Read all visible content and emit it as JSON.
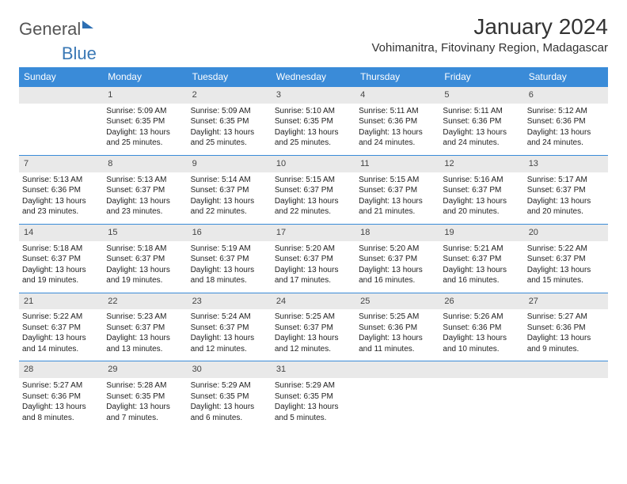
{
  "logo": {
    "part1": "General",
    "part2": "Blue"
  },
  "title": "January 2024",
  "location": "Vohimanitra, Fitovinany Region, Madagascar",
  "colors": {
    "header_bg": "#3a8bd8",
    "header_text": "#ffffff",
    "daynum_bg": "#e9e9e9",
    "border": "#3a8bd8"
  },
  "weekdays": [
    "Sunday",
    "Monday",
    "Tuesday",
    "Wednesday",
    "Thursday",
    "Friday",
    "Saturday"
  ],
  "weeks": [
    [
      null,
      {
        "n": "1",
        "sr": "Sunrise: 5:09 AM",
        "ss": "Sunset: 6:35 PM",
        "dl": "Daylight: 13 hours and 25 minutes."
      },
      {
        "n": "2",
        "sr": "Sunrise: 5:09 AM",
        "ss": "Sunset: 6:35 PM",
        "dl": "Daylight: 13 hours and 25 minutes."
      },
      {
        "n": "3",
        "sr": "Sunrise: 5:10 AM",
        "ss": "Sunset: 6:35 PM",
        "dl": "Daylight: 13 hours and 25 minutes."
      },
      {
        "n": "4",
        "sr": "Sunrise: 5:11 AM",
        "ss": "Sunset: 6:36 PM",
        "dl": "Daylight: 13 hours and 24 minutes."
      },
      {
        "n": "5",
        "sr": "Sunrise: 5:11 AM",
        "ss": "Sunset: 6:36 PM",
        "dl": "Daylight: 13 hours and 24 minutes."
      },
      {
        "n": "6",
        "sr": "Sunrise: 5:12 AM",
        "ss": "Sunset: 6:36 PM",
        "dl": "Daylight: 13 hours and 24 minutes."
      }
    ],
    [
      {
        "n": "7",
        "sr": "Sunrise: 5:13 AM",
        "ss": "Sunset: 6:36 PM",
        "dl": "Daylight: 13 hours and 23 minutes."
      },
      {
        "n": "8",
        "sr": "Sunrise: 5:13 AM",
        "ss": "Sunset: 6:37 PM",
        "dl": "Daylight: 13 hours and 23 minutes."
      },
      {
        "n": "9",
        "sr": "Sunrise: 5:14 AM",
        "ss": "Sunset: 6:37 PM",
        "dl": "Daylight: 13 hours and 22 minutes."
      },
      {
        "n": "10",
        "sr": "Sunrise: 5:15 AM",
        "ss": "Sunset: 6:37 PM",
        "dl": "Daylight: 13 hours and 22 minutes."
      },
      {
        "n": "11",
        "sr": "Sunrise: 5:15 AM",
        "ss": "Sunset: 6:37 PM",
        "dl": "Daylight: 13 hours and 21 minutes."
      },
      {
        "n": "12",
        "sr": "Sunrise: 5:16 AM",
        "ss": "Sunset: 6:37 PM",
        "dl": "Daylight: 13 hours and 20 minutes."
      },
      {
        "n": "13",
        "sr": "Sunrise: 5:17 AM",
        "ss": "Sunset: 6:37 PM",
        "dl": "Daylight: 13 hours and 20 minutes."
      }
    ],
    [
      {
        "n": "14",
        "sr": "Sunrise: 5:18 AM",
        "ss": "Sunset: 6:37 PM",
        "dl": "Daylight: 13 hours and 19 minutes."
      },
      {
        "n": "15",
        "sr": "Sunrise: 5:18 AM",
        "ss": "Sunset: 6:37 PM",
        "dl": "Daylight: 13 hours and 19 minutes."
      },
      {
        "n": "16",
        "sr": "Sunrise: 5:19 AM",
        "ss": "Sunset: 6:37 PM",
        "dl": "Daylight: 13 hours and 18 minutes."
      },
      {
        "n": "17",
        "sr": "Sunrise: 5:20 AM",
        "ss": "Sunset: 6:37 PM",
        "dl": "Daylight: 13 hours and 17 minutes."
      },
      {
        "n": "18",
        "sr": "Sunrise: 5:20 AM",
        "ss": "Sunset: 6:37 PM",
        "dl": "Daylight: 13 hours and 16 minutes."
      },
      {
        "n": "19",
        "sr": "Sunrise: 5:21 AM",
        "ss": "Sunset: 6:37 PM",
        "dl": "Daylight: 13 hours and 16 minutes."
      },
      {
        "n": "20",
        "sr": "Sunrise: 5:22 AM",
        "ss": "Sunset: 6:37 PM",
        "dl": "Daylight: 13 hours and 15 minutes."
      }
    ],
    [
      {
        "n": "21",
        "sr": "Sunrise: 5:22 AM",
        "ss": "Sunset: 6:37 PM",
        "dl": "Daylight: 13 hours and 14 minutes."
      },
      {
        "n": "22",
        "sr": "Sunrise: 5:23 AM",
        "ss": "Sunset: 6:37 PM",
        "dl": "Daylight: 13 hours and 13 minutes."
      },
      {
        "n": "23",
        "sr": "Sunrise: 5:24 AM",
        "ss": "Sunset: 6:37 PM",
        "dl": "Daylight: 13 hours and 12 minutes."
      },
      {
        "n": "24",
        "sr": "Sunrise: 5:25 AM",
        "ss": "Sunset: 6:37 PM",
        "dl": "Daylight: 13 hours and 12 minutes."
      },
      {
        "n": "25",
        "sr": "Sunrise: 5:25 AM",
        "ss": "Sunset: 6:36 PM",
        "dl": "Daylight: 13 hours and 11 minutes."
      },
      {
        "n": "26",
        "sr": "Sunrise: 5:26 AM",
        "ss": "Sunset: 6:36 PM",
        "dl": "Daylight: 13 hours and 10 minutes."
      },
      {
        "n": "27",
        "sr": "Sunrise: 5:27 AM",
        "ss": "Sunset: 6:36 PM",
        "dl": "Daylight: 13 hours and 9 minutes."
      }
    ],
    [
      {
        "n": "28",
        "sr": "Sunrise: 5:27 AM",
        "ss": "Sunset: 6:36 PM",
        "dl": "Daylight: 13 hours and 8 minutes."
      },
      {
        "n": "29",
        "sr": "Sunrise: 5:28 AM",
        "ss": "Sunset: 6:35 PM",
        "dl": "Daylight: 13 hours and 7 minutes."
      },
      {
        "n": "30",
        "sr": "Sunrise: 5:29 AM",
        "ss": "Sunset: 6:35 PM",
        "dl": "Daylight: 13 hours and 6 minutes."
      },
      {
        "n": "31",
        "sr": "Sunrise: 5:29 AM",
        "ss": "Sunset: 6:35 PM",
        "dl": "Daylight: 13 hours and 5 minutes."
      },
      null,
      null,
      null
    ]
  ]
}
